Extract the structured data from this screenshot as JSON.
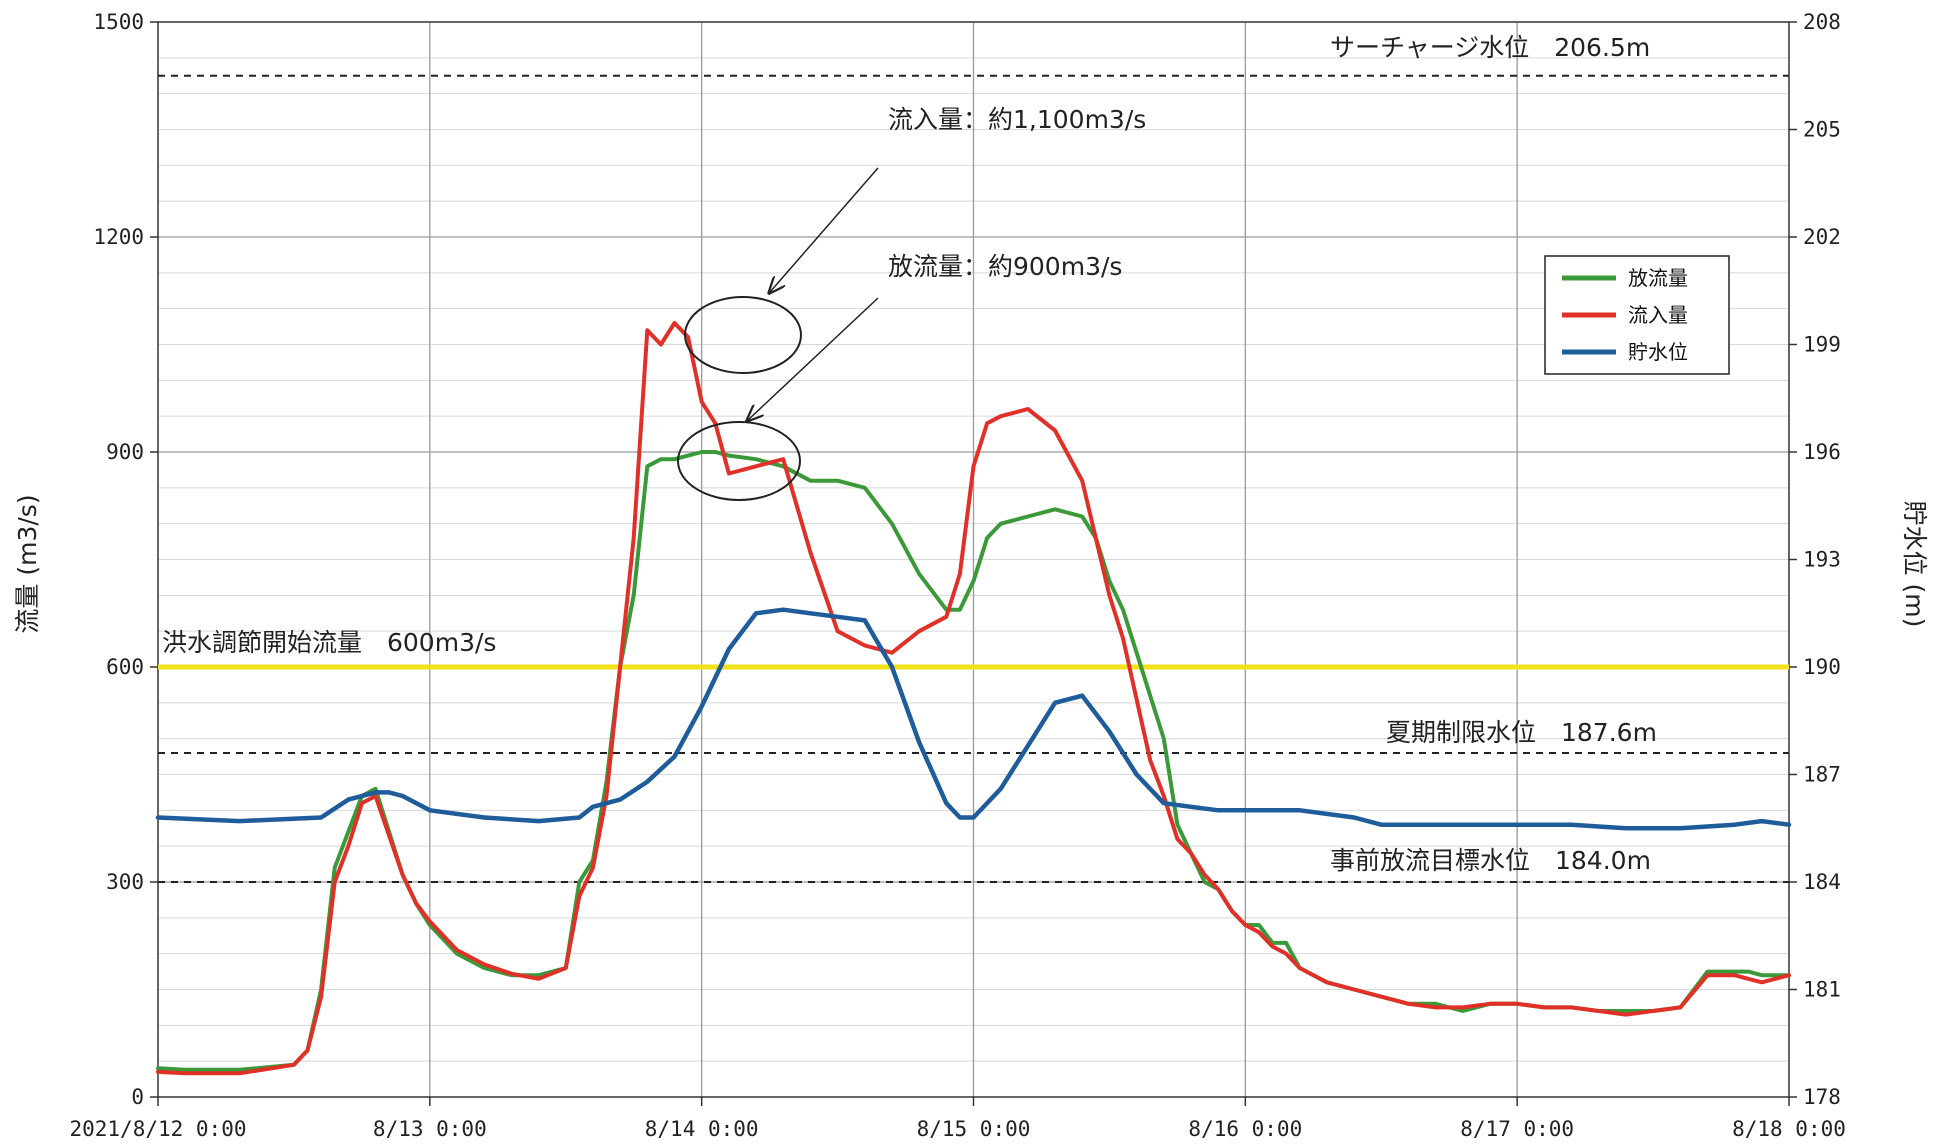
{
  "chart_data": {
    "type": "line",
    "x_ticks": [
      "2021/8/12 0:00",
      "8/13 0:00",
      "8/14 0:00",
      "8/15 0:00",
      "8/16 0:00",
      "8/17 0:00",
      "8/18 0:00"
    ],
    "ylabel_left": "流量 (m3/s)",
    "ylabel_right": "貯水位 (m)",
    "ylim_left": [
      0,
      1500
    ],
    "y_ticks_left": [
      "0",
      "300",
      "600",
      "900",
      "1200",
      "1500"
    ],
    "ylim_right": [
      178,
      208
    ],
    "y_ticks_right": [
      "178",
      "181",
      "184",
      "187",
      "190",
      "193",
      "196",
      "199",
      "202",
      "205",
      "208"
    ],
    "grid": true,
    "legend_position": "upper-right",
    "legend": [
      {
        "name": "放流量",
        "color": "#3a9a3a"
      },
      {
        "name": "流入量",
        "color": "#e03028"
      },
      {
        "name": "貯水位",
        "color": "#1f5c9a"
      }
    ],
    "series": [
      {
        "name": "放流量",
        "axis": "left",
        "color": "#3a9a3a",
        "x": [
          0,
          0.1,
          0.3,
          0.5,
          0.55,
          0.6,
          0.65,
          0.7,
          0.75,
          0.8,
          0.9,
          0.95,
          1,
          1.1,
          1.2,
          1.3,
          1.4,
          1.5,
          1.55,
          1.6,
          1.65,
          1.7,
          1.75,
          1.8,
          1.85,
          1.9,
          1.95,
          2,
          2.05,
          2.1,
          2.2,
          2.3,
          2.4,
          2.5,
          2.6,
          2.7,
          2.8,
          2.9,
          2.95,
          3,
          3.05,
          3.1,
          3.2,
          3.3,
          3.4,
          3.45,
          3.5,
          3.55,
          3.65,
          3.7,
          3.75,
          3.8,
          3.85,
          3.9,
          3.95,
          4,
          4.05,
          4.1,
          4.15,
          4.2,
          4.3,
          4.4,
          4.5,
          4.6,
          4.7,
          4.8,
          4.9,
          5,
          5.1,
          5.2,
          5.3,
          5.4,
          5.5,
          5.6,
          5.7,
          5.8,
          5.85,
          5.9,
          5.95,
          6
        ],
        "values": [
          40,
          38,
          38,
          45,
          65,
          150,
          320,
          370,
          420,
          430,
          310,
          270,
          240,
          200,
          180,
          170,
          170,
          180,
          300,
          330,
          440,
          600,
          700,
          880,
          890,
          890,
          895,
          900,
          900,
          895,
          890,
          880,
          860,
          860,
          850,
          800,
          730,
          680,
          680,
          720,
          780,
          800,
          810,
          820,
          810,
          780,
          720,
          680,
          560,
          500,
          380,
          340,
          300,
          290,
          260,
          240,
          240,
          215,
          215,
          180,
          160,
          150,
          140,
          130,
          130,
          120,
          130,
          130,
          125,
          125,
          120,
          120,
          120,
          125,
          175,
          175,
          175,
          170,
          170,
          170
        ]
      },
      {
        "name": "流入量",
        "axis": "left",
        "color": "#e03028",
        "x": [
          0,
          0.1,
          0.3,
          0.5,
          0.55,
          0.6,
          0.65,
          0.7,
          0.75,
          0.8,
          0.9,
          0.95,
          1,
          1.1,
          1.2,
          1.3,
          1.4,
          1.5,
          1.55,
          1.6,
          1.65,
          1.7,
          1.75,
          1.8,
          1.85,
          1.9,
          1.95,
          2,
          2.05,
          2.1,
          2.2,
          2.3,
          2.4,
          2.5,
          2.6,
          2.7,
          2.8,
          2.9,
          2.95,
          3,
          3.05,
          3.1,
          3.2,
          3.3,
          3.4,
          3.45,
          3.5,
          3.55,
          3.65,
          3.7,
          3.75,
          3.8,
          3.85,
          3.9,
          3.95,
          4,
          4.05,
          4.1,
          4.15,
          4.2,
          4.3,
          4.4,
          4.5,
          4.6,
          4.7,
          4.8,
          4.9,
          5,
          5.1,
          5.2,
          5.3,
          5.4,
          5.5,
          5.6,
          5.7,
          5.8,
          5.85,
          5.9,
          5.95,
          6
        ],
        "values": [
          35,
          33,
          33,
          45,
          65,
          140,
          300,
          350,
          410,
          420,
          310,
          270,
          245,
          205,
          185,
          172,
          165,
          180,
          280,
          320,
          420,
          600,
          780,
          1070,
          1050,
          1080,
          1060,
          970,
          940,
          870,
          880,
          890,
          760,
          650,
          630,
          620,
          650,
          670,
          730,
          880,
          940,
          950,
          960,
          930,
          860,
          780,
          700,
          640,
          470,
          420,
          360,
          340,
          310,
          290,
          260,
          240,
          230,
          210,
          200,
          180,
          160,
          150,
          140,
          130,
          125,
          125,
          130,
          130,
          125,
          125,
          120,
          115,
          120,
          125,
          170,
          170,
          165,
          160,
          165,
          170
        ]
      },
      {
        "name": "貯水位",
        "axis": "right",
        "color": "#1f5c9a",
        "x": [
          0,
          0.3,
          0.6,
          0.7,
          0.8,
          0.85,
          0.9,
          1,
          1.2,
          1.4,
          1.55,
          1.6,
          1.7,
          1.8,
          1.9,
          2,
          2.1,
          2.2,
          2.3,
          2.4,
          2.5,
          2.6,
          2.7,
          2.8,
          2.9,
          2.95,
          3,
          3.1,
          3.2,
          3.3,
          3.4,
          3.5,
          3.6,
          3.7,
          3.8,
          3.9,
          4,
          4.2,
          4.4,
          4.5,
          4.6,
          4.8,
          5,
          5.2,
          5.4,
          5.6,
          5.8,
          5.9,
          6
        ],
        "values": [
          185.8,
          185.7,
          185.8,
          186.3,
          186.5,
          186.5,
          186.4,
          186.0,
          185.8,
          185.7,
          185.8,
          186.1,
          186.3,
          186.8,
          187.5,
          188.9,
          190.5,
          191.5,
          191.6,
          191.5,
          191.4,
          191.3,
          190.0,
          187.9,
          186.2,
          185.8,
          185.8,
          186.6,
          187.8,
          189.0,
          189.2,
          188.2,
          187.0,
          186.2,
          186.1,
          186.0,
          186.0,
          186.0,
          185.8,
          185.6,
          185.6,
          185.6,
          185.6,
          185.6,
          185.5,
          185.5,
          185.6,
          185.7,
          185.6
        ]
      }
    ],
    "reference_lines": [
      {
        "label": "サーチャージ水位　206.5m",
        "axis": "right",
        "value": 206.5,
        "style": "dashed",
        "color": "#222222"
      },
      {
        "label": "洪水調節開始流量　600m3/s",
        "axis": "left",
        "value": 600,
        "style": "solid",
        "color": "#f2e21a"
      },
      {
        "label": "夏期制限水位　187.6m",
        "axis": "right",
        "value": 187.6,
        "style": "dashed",
        "color": "#222222"
      },
      {
        "label": "事前放流目標水位　184.0m",
        "axis": "right",
        "value": 184.0,
        "style": "dashed",
        "color": "#222222"
      }
    ],
    "annotations": [
      {
        "text": "流入量：約1,100m3/s"
      },
      {
        "text": "放流量：約900m3/s"
      }
    ]
  }
}
